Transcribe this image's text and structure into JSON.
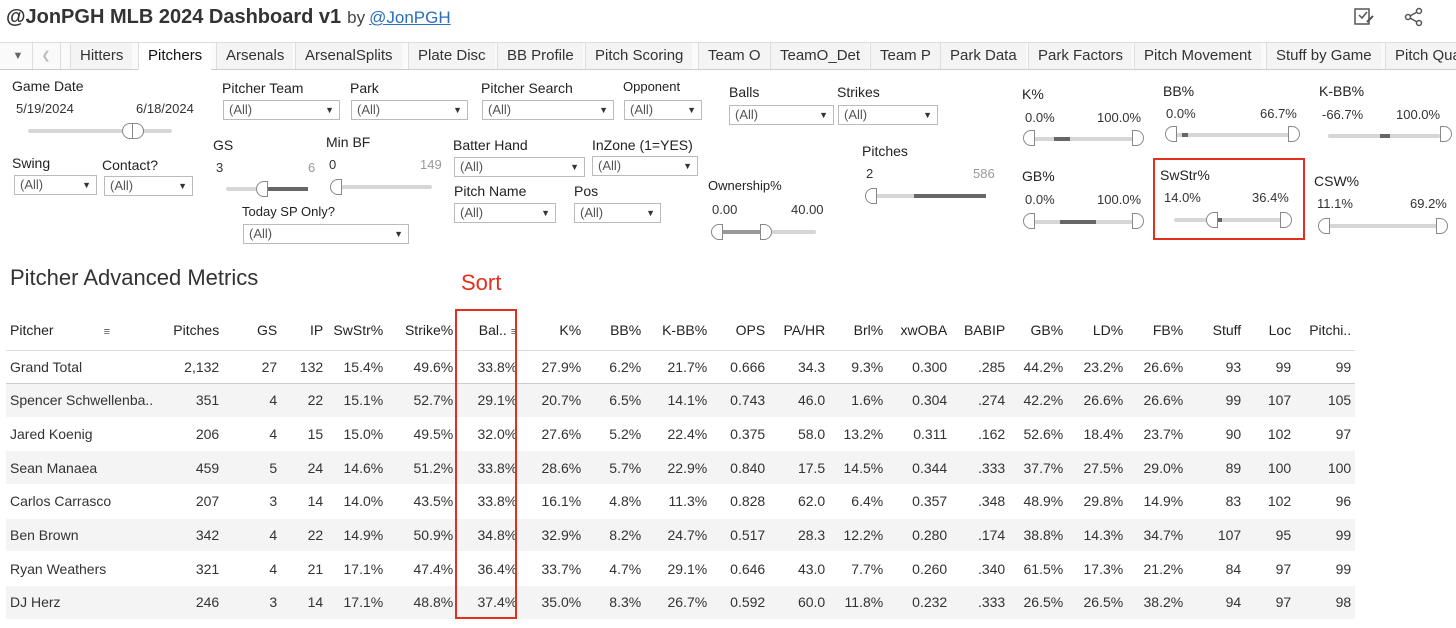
{
  "header": {
    "title": "@JonPGH MLB 2024 Dashboard v1",
    "by": "by",
    "author": "@JonPGH",
    "icons": [
      "edit-icon",
      "share-icon"
    ]
  },
  "tabs": [
    "Hitters",
    "Pitchers",
    "Arsenals",
    "ArsenalSplits",
    "Plate Disc",
    "BB Profile",
    "Pitch Scoring",
    "Team O",
    "TeamO_Det",
    "Team P",
    "Park Data",
    "Park Factors",
    "Pitch Movement",
    "Stuff by Game",
    "Pitch Qua"
  ],
  "active_tab": "Pitchers",
  "filters": {
    "game_date": {
      "label": "Game Date",
      "start": "5/19/2024",
      "end": "6/18/2024"
    },
    "pitcher_team": {
      "label": "Pitcher Team",
      "value": "(All)"
    },
    "park": {
      "label": "Park",
      "value": "(All)"
    },
    "pitcher_search": {
      "label": "Pitcher Search",
      "value": "(All)"
    },
    "opponent": {
      "label": "Opponent",
      "value": "(All)"
    },
    "balls": {
      "label": "Balls",
      "value": "(All)"
    },
    "strikes": {
      "label": "Strikes",
      "value": "(All)"
    },
    "swing": {
      "label": "Swing",
      "value": "(All)"
    },
    "contact": {
      "label": "Contact?",
      "value": "(All)"
    },
    "gs": {
      "label": "GS",
      "min": "3",
      "max": "6"
    },
    "min_bf": {
      "label": "Min BF",
      "min": "0",
      "max": "149"
    },
    "today_sp": {
      "label": "Today SP Only?",
      "value": "(All)"
    },
    "batter_hand": {
      "label": "Batter Hand",
      "value": "(All)"
    },
    "inzone": {
      "label": "InZone (1=YES)",
      "value": "(All)"
    },
    "pitch_name": {
      "label": "Pitch Name",
      "value": "(All)"
    },
    "pos": {
      "label": "Pos",
      "value": "(All)"
    },
    "ownership": {
      "label": "Ownership%",
      "min": "0.00",
      "max": "40.00"
    },
    "pitches": {
      "label": "Pitches",
      "min": "2",
      "max": "586"
    },
    "k_pct": {
      "label": "K%",
      "min": "0.0%",
      "max": "100.0%"
    },
    "bb_pct": {
      "label": "BB%",
      "min": "0.0%",
      "max": "66.7%"
    },
    "k_bb_pct": {
      "label": "K-BB%",
      "min": "-66.7%",
      "max": "100.0%"
    },
    "gb_pct": {
      "label": "GB%",
      "min": "0.0%",
      "max": "100.0%"
    },
    "swstr_pct": {
      "label": "SwStr%",
      "min": "14.0%",
      "max": "36.4%"
    },
    "csw_pct": {
      "label": "CSW%",
      "min": "11.1%",
      "max": "69.2%"
    }
  },
  "sort_annotation": "Sort",
  "table": {
    "title": "Pitcher Advanced Metrics",
    "columns": [
      "Pitcher",
      "Pitches",
      "GS",
      "IP",
      "SwStr%",
      "Strike%",
      "Bal..",
      "K%",
      "BB%",
      "K-BB%",
      "OPS",
      "PA/HR",
      "Brl%",
      "xwOBA",
      "BABIP",
      "GB%",
      "LD%",
      "FB%",
      "Stuff",
      "Loc",
      "Pitchi.."
    ],
    "grand_total": [
      "Grand Total",
      "2,132",
      "27",
      "132",
      "15.4%",
      "49.6%",
      "33.8%",
      "27.9%",
      "6.2%",
      "21.7%",
      "0.666",
      "34.3",
      "9.3%",
      "0.300",
      ".285",
      "44.2%",
      "23.2%",
      "26.6%",
      "93",
      "99",
      "99"
    ],
    "rows": [
      [
        "Spencer Schwellenba..",
        "351",
        "4",
        "22",
        "15.1%",
        "52.7%",
        "29.1%",
        "20.7%",
        "6.5%",
        "14.1%",
        "0.743",
        "46.0",
        "1.6%",
        "0.304",
        ".274",
        "42.2%",
        "26.6%",
        "26.6%",
        "99",
        "107",
        "105"
      ],
      [
        "Jared Koenig",
        "206",
        "4",
        "15",
        "15.0%",
        "49.5%",
        "32.0%",
        "27.6%",
        "5.2%",
        "22.4%",
        "0.375",
        "58.0",
        "13.2%",
        "0.311",
        ".162",
        "52.6%",
        "18.4%",
        "23.7%",
        "90",
        "102",
        "97"
      ],
      [
        "Sean Manaea",
        "459",
        "5",
        "24",
        "14.6%",
        "51.2%",
        "33.8%",
        "28.6%",
        "5.7%",
        "22.9%",
        "0.840",
        "17.5",
        "14.5%",
        "0.344",
        ".333",
        "37.7%",
        "27.5%",
        "29.0%",
        "89",
        "100",
        "100"
      ],
      [
        "Carlos Carrasco",
        "207",
        "3",
        "14",
        "14.0%",
        "43.5%",
        "33.8%",
        "16.1%",
        "4.8%",
        "11.3%",
        "0.828",
        "62.0",
        "6.4%",
        "0.357",
        ".348",
        "48.9%",
        "29.8%",
        "14.9%",
        "83",
        "102",
        "96"
      ],
      [
        "Ben Brown",
        "342",
        "4",
        "22",
        "14.9%",
        "50.9%",
        "34.8%",
        "32.9%",
        "8.2%",
        "24.7%",
        "0.517",
        "28.3",
        "12.2%",
        "0.280",
        ".174",
        "38.8%",
        "14.3%",
        "34.7%",
        "107",
        "95",
        "99"
      ],
      [
        "Ryan Weathers",
        "321",
        "4",
        "21",
        "17.1%",
        "47.4%",
        "36.4%",
        "33.7%",
        "4.7%",
        "29.1%",
        "0.646",
        "43.0",
        "7.7%",
        "0.260",
        ".340",
        "61.5%",
        "17.3%",
        "21.2%",
        "84",
        "97",
        "99"
      ],
      [
        "DJ Herz",
        "246",
        "3",
        "14",
        "17.1%",
        "48.8%",
        "37.4%",
        "35.0%",
        "8.3%",
        "26.7%",
        "0.592",
        "60.0",
        "11.8%",
        "0.232",
        ".333",
        "26.5%",
        "26.5%",
        "38.2%",
        "94",
        "97",
        "98"
      ]
    ]
  },
  "colors": {
    "highlight": "#e2301c",
    "link": "#2a6ebb",
    "alt_row": "#f4f4f4"
  }
}
